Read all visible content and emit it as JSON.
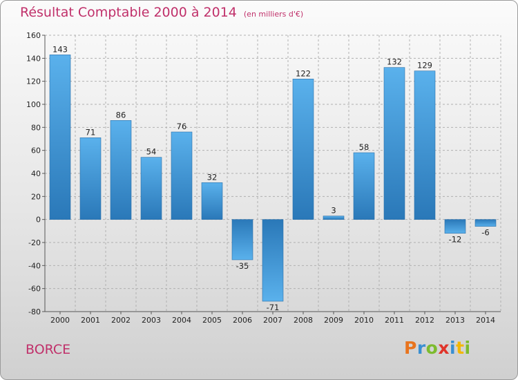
{
  "title": "Résultat Comptable 2000 à 2014",
  "unit": "(en milliers d'€)",
  "commune": "BORCE",
  "logo": [
    "P",
    "r",
    "o",
    "x",
    "i",
    "t",
    "i"
  ],
  "logo_colors": [
    "#e8741e",
    "#3a8fd1",
    "#7dbb2e",
    "#e0342a",
    "#3a8fd1",
    "#f2b705",
    "#7dbb2e"
  ],
  "colors": {
    "bar_light": "#5ab1ec",
    "bar_dark": "#2a78b8",
    "grid": "#b0b0b0",
    "accent": "#c0306a"
  },
  "chart_data": {
    "type": "bar",
    "title": "Résultat Comptable 2000 à 2014",
    "categories": [
      "2000",
      "2001",
      "2002",
      "2003",
      "2004",
      "2005",
      "2006",
      "2007",
      "2008",
      "2009",
      "2010",
      "2011",
      "2012",
      "2013",
      "2014"
    ],
    "values": [
      143,
      71,
      86,
      54,
      76,
      32,
      -35,
      -71,
      122,
      3,
      58,
      132,
      129,
      -12,
      -6
    ],
    "ylim": [
      -80,
      160
    ],
    "yticks": [
      -80,
      -60,
      -40,
      -20,
      0,
      20,
      40,
      60,
      80,
      100,
      120,
      140,
      160
    ],
    "grid": "horizontal dashed",
    "legend": "none"
  }
}
